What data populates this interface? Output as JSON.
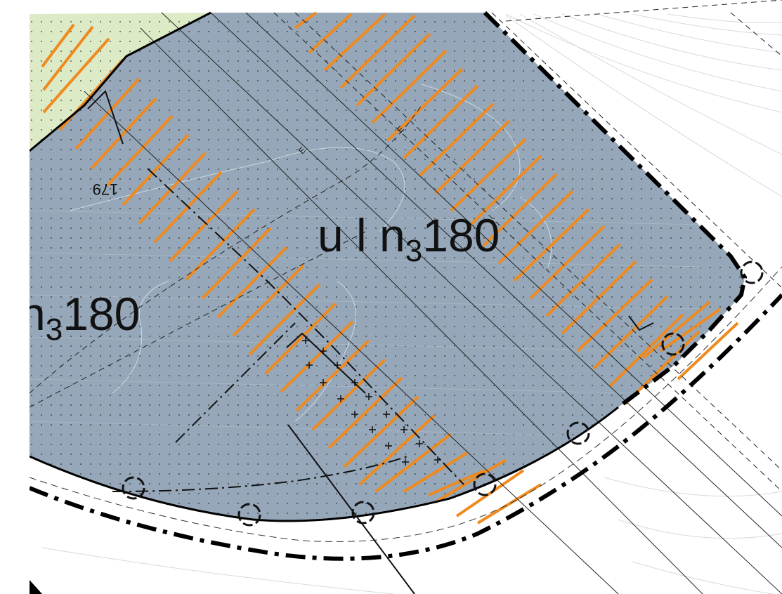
{
  "map": {
    "zone_labels": [
      {
        "base": "u l n",
        "subscript": "3",
        "suffix": "180"
      },
      {
        "base": "n",
        "subscript": "3",
        "suffix": "180"
      }
    ],
    "contour_labels": [
      "179",
      "E",
      "E"
    ],
    "colors": {
      "zone_fill": "#95a7b8",
      "green_zone": "#dcebc6",
      "hatch": "#f08a1e",
      "boundary": "#000000",
      "contour": "#c9ced3",
      "background": "#ffffff"
    }
  }
}
